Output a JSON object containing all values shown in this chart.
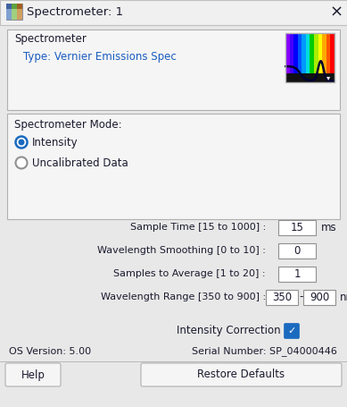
{
  "title": "Spectrometer: 1",
  "bg_color": "#e8e8e8",
  "panel_bg": "#f5f5f5",
  "white": "#ffffff",
  "dark_text": "#1a1a2e",
  "blue_text": "#1a5cbf",
  "border_color": "#b0b0b0",
  "input_border": "#909090",
  "section1_label": "Spectrometer",
  "type_label": "Type: Vernier Emissions Spec",
  "section2_label": "Spectrometer Mode:",
  "radio1": "Intensity",
  "radio2": "Uncalibrated Data",
  "row1_label": "Sample Time [15 to 1000] :",
  "row1_val": "15",
  "row1_unit": "ms",
  "row2_label": "Wavelength Smoothing [0 to 10] :",
  "row2_val": "0",
  "row3_label": "Samples to Average [1 to 20] :",
  "row3_val": "1",
  "row4_label": "Wavelength Range [350 to 900] :",
  "row4_val1": "350",
  "row4_dash": "-",
  "row4_val2": "900",
  "row4_unit": "nm",
  "intensity_correction": "Intensity Correction",
  "os_version": "OS Version: 5.00",
  "serial_number": "Serial Number: SP_04000446",
  "btn1": "Help",
  "btn2": "Restore Defaults",
  "checkbox_color": "#1a6abf",
  "radio_fill": "#1a6abf",
  "figsize": [
    3.89,
    4.55
  ],
  "dpi": 100
}
